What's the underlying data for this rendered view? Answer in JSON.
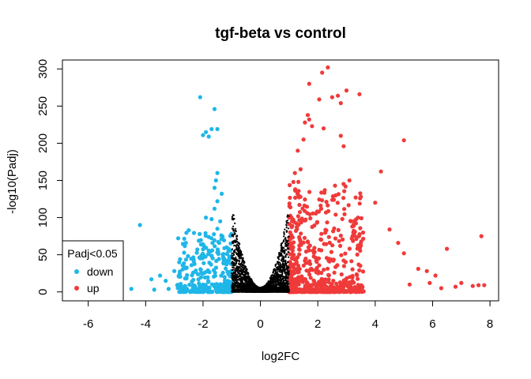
{
  "chart_data": {
    "type": "scatter",
    "title": "tgf-beta vs control",
    "xlabel": "log2FC",
    "ylabel": "-log10(Padj)",
    "xlim": [
      -6.9,
      8.3
    ],
    "ylim": [
      -12,
      312
    ],
    "xticks": [
      -6,
      -4,
      -2,
      0,
      2,
      4,
      6,
      8
    ],
    "yticks": [
      0,
      50,
      100,
      150,
      200,
      250,
      300
    ],
    "grid": false,
    "legend": {
      "title": "Padj<0.05",
      "position": "bottom-left",
      "entries": [
        {
          "label": "down",
          "color": "#1fb6e8"
        },
        {
          "label": "up",
          "color": "#f03a3a"
        }
      ]
    },
    "series": [
      {
        "name": "down",
        "color": "#1fb6e8",
        "points": [
          [
            -2.1,
            262
          ],
          [
            -1.6,
            246
          ],
          [
            -1.7,
            219
          ],
          [
            -1.5,
            219
          ],
          [
            -1.9,
            215
          ],
          [
            -2.0,
            211
          ],
          [
            -1.8,
            209
          ],
          [
            -1.5,
            160
          ],
          [
            -1.55,
            150
          ],
          [
            -1.6,
            140
          ],
          [
            -1.35,
            132
          ],
          [
            -1.5,
            122
          ],
          [
            -1.6,
            112
          ],
          [
            -4.2,
            90
          ],
          [
            -1.9,
            100
          ],
          [
            -1.7,
            98
          ],
          [
            -1.4,
            95
          ],
          [
            -2.5,
            83
          ],
          [
            -1.5,
            85
          ],
          [
            -3.0,
            28
          ],
          [
            -3.5,
            22
          ],
          [
            -3.8,
            17
          ],
          [
            -4.5,
            4
          ],
          [
            -3.7,
            3
          ],
          [
            -3.2,
            4
          ],
          [
            -2.6,
            66
          ],
          [
            -2.2,
            57
          ],
          [
            -1.1,
            55
          ],
          [
            -2.8,
            44
          ],
          [
            -1.3,
            47
          ],
          [
            -2.4,
            36
          ],
          [
            -3.3,
            15
          ],
          [
            -2.9,
            9
          ]
        ],
        "generated": {
          "count": 340,
          "x_range": [
            -2.9,
            -1.0
          ],
          "y_range": [
            0,
            80
          ]
        }
      },
      {
        "name": "up",
        "color": "#f03a3a",
        "points": [
          [
            2.35,
            302
          ],
          [
            2.15,
            295
          ],
          [
            1.7,
            280
          ],
          [
            3.0,
            271
          ],
          [
            3.45,
            266
          ],
          [
            2.7,
            264
          ],
          [
            2.5,
            262
          ],
          [
            2.05,
            259
          ],
          [
            2.8,
            254
          ],
          [
            1.65,
            238
          ],
          [
            1.7,
            232
          ],
          [
            1.55,
            228
          ],
          [
            1.8,
            223
          ],
          [
            2.2,
            220
          ],
          [
            2.8,
            210
          ],
          [
            5.0,
            204
          ],
          [
            2.9,
            196
          ],
          [
            4.2,
            162
          ],
          [
            1.4,
            165
          ],
          [
            1.2,
            160
          ],
          [
            3.1,
            150
          ],
          [
            2.6,
            143
          ],
          [
            3.5,
            128
          ],
          [
            4.0,
            120
          ],
          [
            2.1,
            116
          ],
          [
            3.4,
            100
          ],
          [
            3.2,
            88
          ],
          [
            4.5,
            84
          ],
          [
            5.0,
            52
          ],
          [
            5.5,
            31
          ],
          [
            5.8,
            28
          ],
          [
            6.1,
            22
          ],
          [
            6.5,
            58
          ],
          [
            7.4,
            8
          ],
          [
            7.6,
            9
          ],
          [
            7.8,
            9
          ],
          [
            7.0,
            12
          ],
          [
            6.8,
            7
          ],
          [
            7.7,
            75
          ],
          [
            4.8,
            66
          ],
          [
            5.2,
            10
          ],
          [
            5.9,
            12
          ],
          [
            6.3,
            5
          ],
          [
            1.3,
            190
          ],
          [
            1.5,
            205
          ]
        ],
        "generated": {
          "count": 600,
          "x_range": [
            1.0,
            3.6
          ],
          "y_range": [
            0,
            150
          ]
        }
      },
      {
        "name": "ns",
        "color": "#000000",
        "generated": {
          "count": 2600,
          "x_range": [
            -1.0,
            1.0
          ],
          "y_range": [
            0,
            118
          ]
        }
      }
    ]
  }
}
